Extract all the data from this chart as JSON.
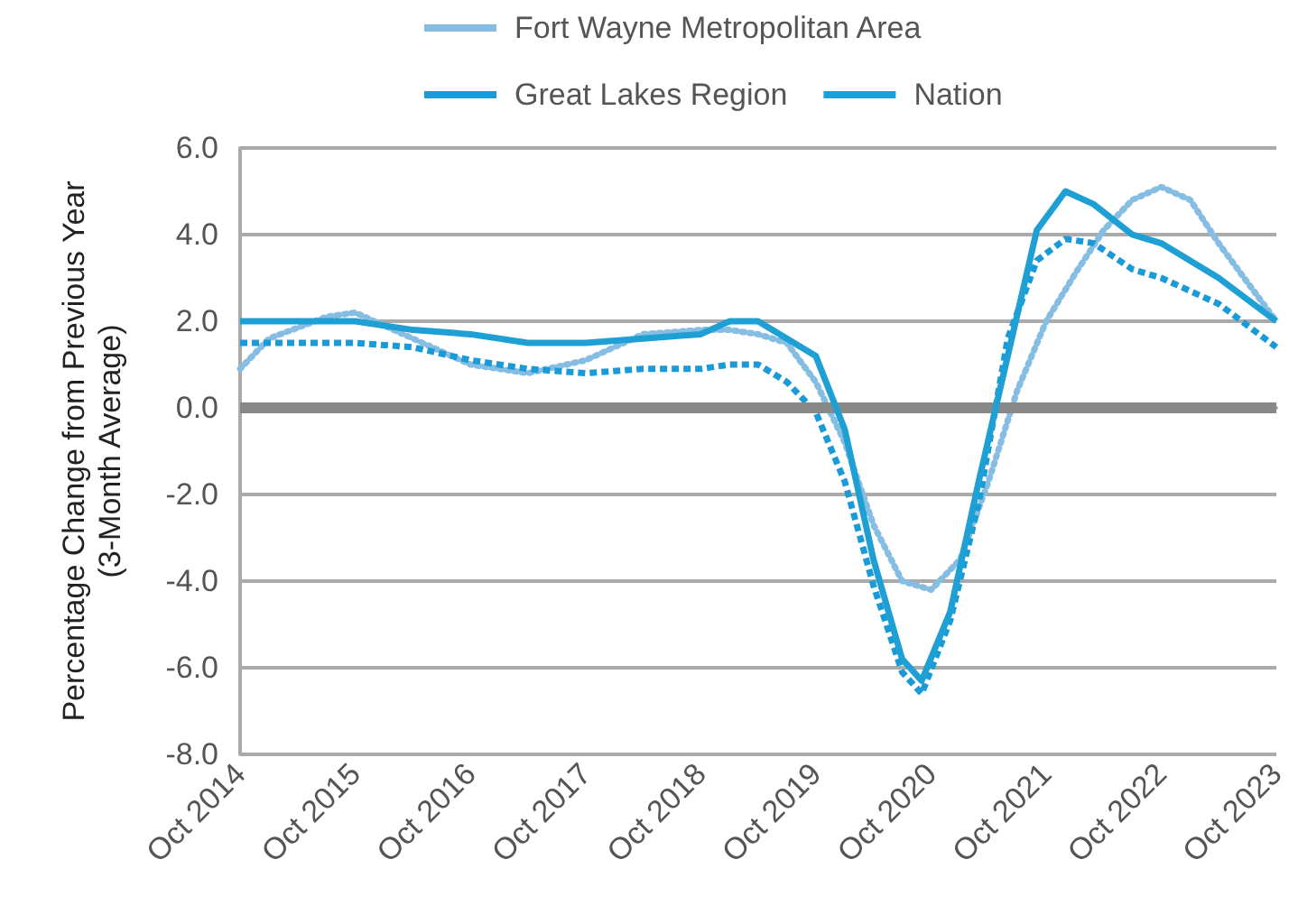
{
  "chart_data": {
    "type": "line",
    "ylabel": "Percentage Change from Previous Year\n(3-Month Average)",
    "xlim": [
      "2014-10",
      "2023-10"
    ],
    "xticks": [
      {
        "value": "2014-10",
        "label": "Oct 2014"
      },
      {
        "value": "2015-10",
        "label": "Oct 2015"
      },
      {
        "value": "2016-10",
        "label": "Oct 2016"
      },
      {
        "value": "2017-10",
        "label": "Oct 2017"
      },
      {
        "value": "2018-10",
        "label": "Oct 2018"
      },
      {
        "value": "2019-10",
        "label": "Oct 2019"
      },
      {
        "value": "2020-10",
        "label": "Oct 2020"
      },
      {
        "value": "2021-10",
        "label": "Oct 2021"
      },
      {
        "value": "2022-10",
        "label": "Oct 2022"
      },
      {
        "value": "2023-10",
        "label": "Oct 2023"
      }
    ],
    "ylim": [
      -8,
      6
    ],
    "yticks": [
      {
        "value": -8,
        "label": "-8.0"
      },
      {
        "value": -6,
        "label": "-6.0"
      },
      {
        "value": -4,
        "label": "-4.0"
      },
      {
        "value": -2,
        "label": "-2.0"
      },
      {
        "value": 0,
        "label": "0.0"
      },
      {
        "value": 2,
        "label": "2.0"
      },
      {
        "value": 4,
        "label": "4.0"
      },
      {
        "value": 6,
        "label": "6.0"
      }
    ],
    "grid": "y",
    "legend": "top",
    "marker": "none",
    "ref_lines": [
      {
        "axis": "y",
        "value": 0,
        "color": "#888888"
      }
    ],
    "series": [
      {
        "name": "Fort Wayne Metropolitan Area",
        "color": "#86bde2",
        "line_style": "dotted",
        "x": [
          "2014-10",
          "2015-01",
          "2015-07",
          "2015-10",
          "2016-01",
          "2016-04",
          "2016-10",
          "2017-04",
          "2017-10",
          "2018-04",
          "2018-10",
          "2019-01",
          "2019-04",
          "2019-07",
          "2019-10",
          "2020-01",
          "2020-04",
          "2020-07",
          "2020-10",
          "2021-01",
          "2021-04",
          "2021-07",
          "2021-10",
          "2022-01",
          "2022-04",
          "2022-07",
          "2022-10",
          "2023-01",
          "2023-04",
          "2023-07",
          "2023-10"
        ],
        "values": [
          0.9,
          1.6,
          2.1,
          2.2,
          1.9,
          1.6,
          1.0,
          0.8,
          1.1,
          1.7,
          1.8,
          1.8,
          1.7,
          1.5,
          0.6,
          -0.8,
          -2.7,
          -4.0,
          -4.2,
          -3.5,
          -1.7,
          0.4,
          2.0,
          3.1,
          4.1,
          4.8,
          5.1,
          4.8,
          3.8,
          2.9,
          2.0
        ]
      },
      {
        "name": "Great Lakes Region",
        "color": "#1a9bd7",
        "line_style": "dashed",
        "x": [
          "2014-10",
          "2015-10",
          "2016-04",
          "2016-10",
          "2017-04",
          "2017-10",
          "2018-04",
          "2018-10",
          "2019-01",
          "2019-04",
          "2019-07",
          "2019-10",
          "2020-01",
          "2020-04",
          "2020-07",
          "2020-09",
          "2020-12",
          "2021-03",
          "2021-06",
          "2021-09",
          "2021-12",
          "2022-03",
          "2022-07",
          "2022-10",
          "2023-04",
          "2023-10"
        ],
        "values": [
          1.5,
          1.5,
          1.4,
          1.1,
          0.9,
          0.8,
          0.9,
          0.9,
          1.0,
          1.0,
          0.6,
          -0.1,
          -1.7,
          -4.1,
          -6.1,
          -6.6,
          -4.9,
          -2.2,
          1.6,
          3.4,
          3.9,
          3.8,
          3.2,
          3.0,
          2.4,
          1.4
        ]
      },
      {
        "name": "Nation",
        "color": "#1fa0d4",
        "line_style": "solid",
        "x": [
          "2014-10",
          "2015-07",
          "2015-10",
          "2016-04",
          "2016-10",
          "2017-04",
          "2017-10",
          "2018-04",
          "2018-10",
          "2019-01",
          "2019-04",
          "2019-10",
          "2020-01",
          "2020-04",
          "2020-07",
          "2020-09",
          "2020-12",
          "2021-03",
          "2021-06",
          "2021-09",
          "2021-12",
          "2022-03",
          "2022-07",
          "2022-10",
          "2023-04",
          "2023-10"
        ],
        "values": [
          2.0,
          2.0,
          2.0,
          1.8,
          1.7,
          1.5,
          1.5,
          1.6,
          1.7,
          2.0,
          2.0,
          1.2,
          -0.5,
          -3.5,
          -5.8,
          -6.3,
          -4.7,
          -1.7,
          1.2,
          4.1,
          5.0,
          4.7,
          4.0,
          3.8,
          3.0,
          2.0
        ]
      }
    ]
  }
}
